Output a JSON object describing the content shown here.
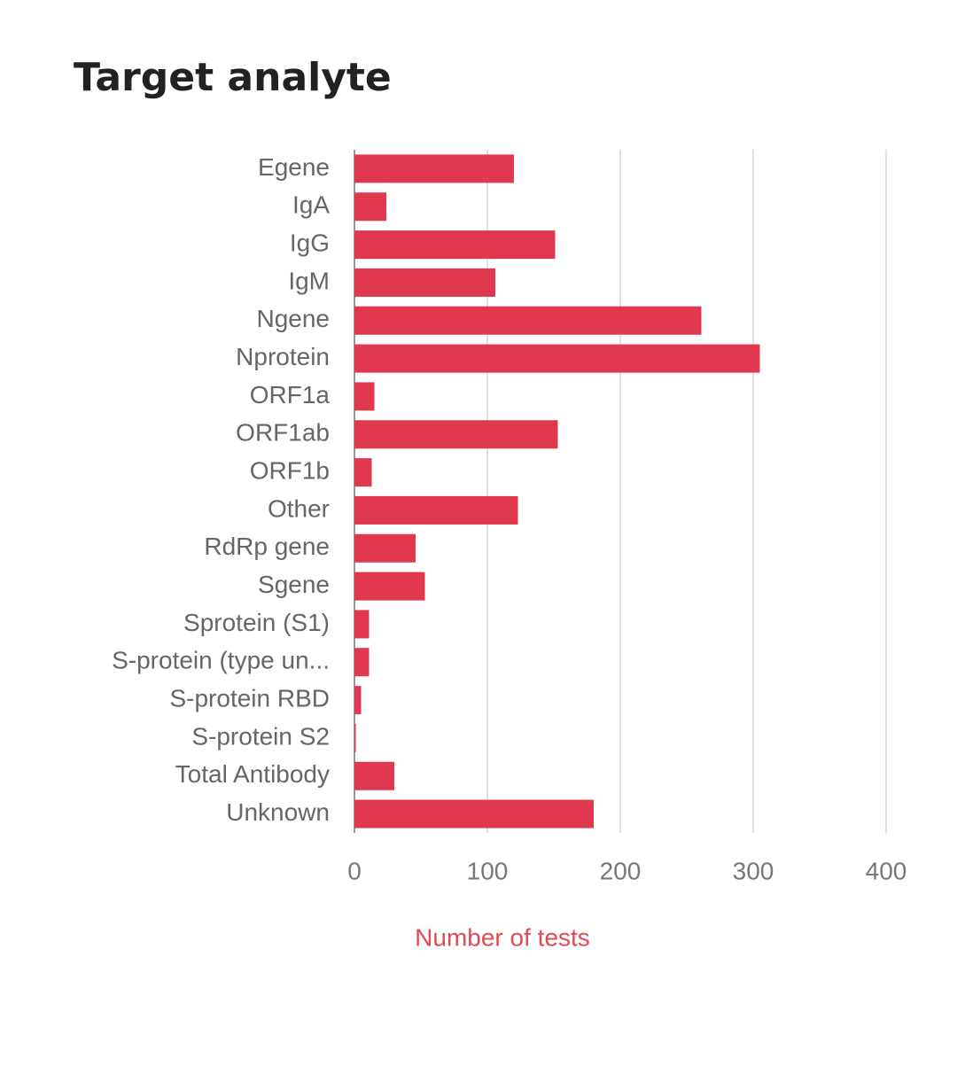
{
  "chart_data": {
    "type": "bar",
    "orientation": "horizontal",
    "title": "Target analyte",
    "x_label": "Number of tests",
    "categories": [
      "Egene",
      "IgA",
      "IgG",
      "IgM",
      "Ngene",
      "Nprotein",
      "ORF1a",
      "ORF1ab",
      "ORF1b",
      "Other",
      "RdRp gene",
      "Sgene",
      "Sprotein (S1)",
      "S-protein (type un...",
      "S-protein RBD",
      "S-protein S2",
      "Total Antibody",
      "Unknown"
    ],
    "values": [
      120,
      24,
      151,
      106,
      261,
      305,
      15,
      153,
      13,
      123,
      46,
      53,
      11,
      11,
      5,
      1,
      30,
      180
    ],
    "color": "#e0394f",
    "xlim": [
      0,
      400
    ],
    "xticks": [
      0,
      100,
      200,
      300,
      400
    ],
    "grid": true
  }
}
